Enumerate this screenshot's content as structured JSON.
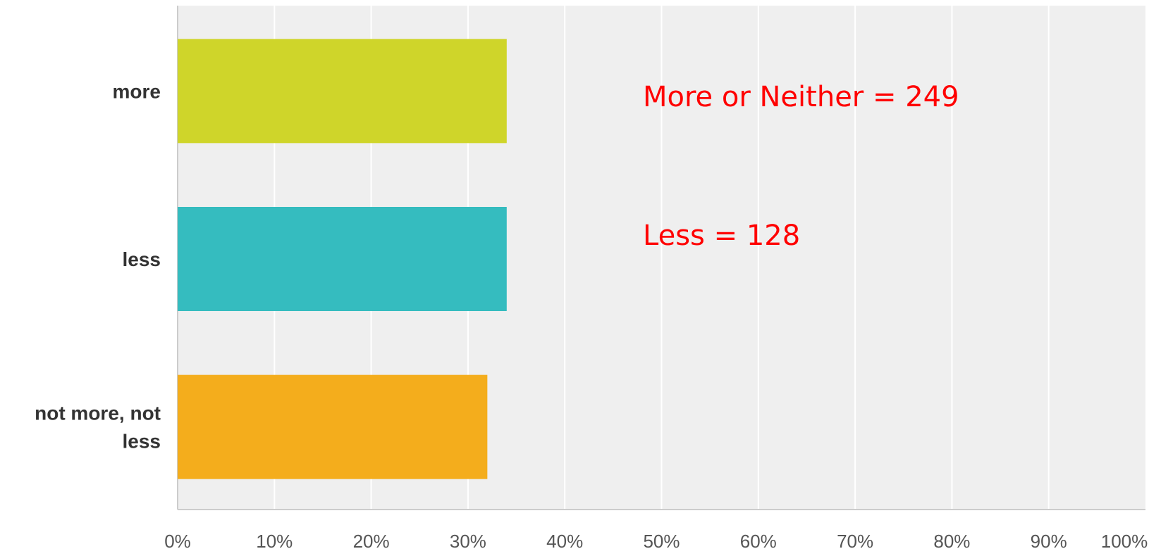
{
  "chart_data": {
    "type": "bar",
    "orientation": "horizontal",
    "categories": [
      {
        "lines": [
          "more"
        ]
      },
      {
        "lines": [
          "less"
        ]
      },
      {
        "lines": [
          "not more, not",
          "less"
        ]
      }
    ],
    "values": [
      34,
      34,
      32
    ],
    "unit": "%",
    "xlim": [
      0,
      100
    ],
    "xticks": [
      "0%",
      "10%",
      "20%",
      "30%",
      "40%",
      "50%",
      "60%",
      "70%",
      "80%",
      "90%",
      "100%"
    ],
    "grid": true,
    "legend": "none",
    "colors": [
      "#cfd52a",
      "#35bcbf",
      "#f4ad1c"
    ],
    "background": "#efefef",
    "annotations": [
      "More or Neither = 249",
      "Less = 128"
    ],
    "annotation_color": "#ff0000"
  }
}
